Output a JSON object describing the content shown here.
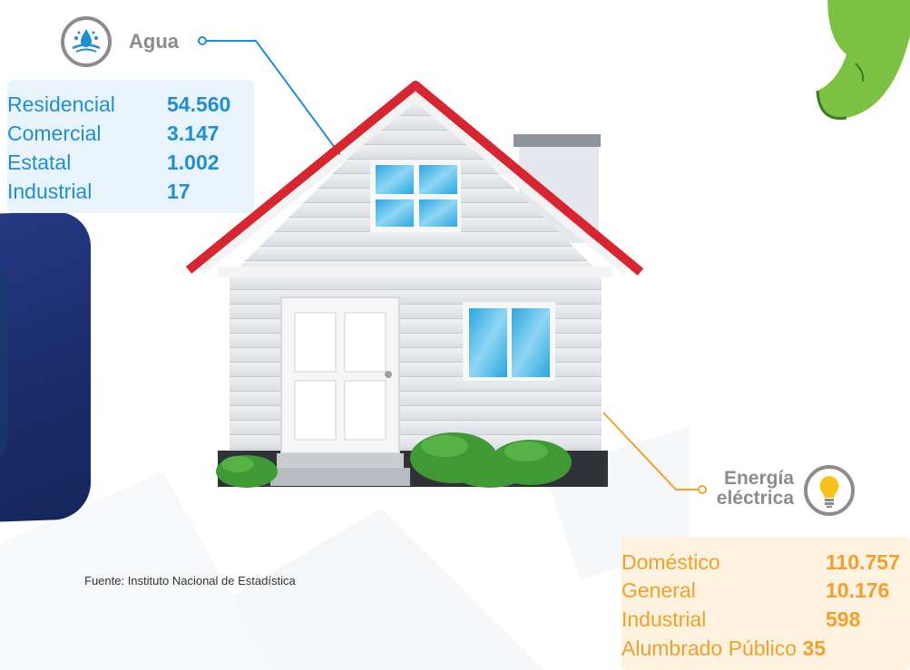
{
  "colors": {
    "water_accent": "#1f8fd1",
    "energy_accent": "#f1a12a",
    "water_panel_bg": "#e8f3fb",
    "energy_panel_bg": "#fdf1e0",
    "title_gray": "#8c8c8c",
    "roof_red": "#d7262f",
    "bg_navy": "#1b2d6b",
    "bg_green": "#7cc242"
  },
  "water": {
    "title": "Agua",
    "icon": "water-drop-icon",
    "rows": [
      {
        "label": "Residencial",
        "value": "54.560"
      },
      {
        "label": "Comercial",
        "value": "3.147"
      },
      {
        "label": "Estatal",
        "value": "1.002"
      },
      {
        "label": "Industrial",
        "value": "17"
      }
    ]
  },
  "energy": {
    "title_line1": "Energía",
    "title_line2": "eléctrica",
    "icon": "light-bulb-icon",
    "rows": [
      {
        "label": "Doméstico",
        "value": "110.757"
      },
      {
        "label": "General",
        "value": "10.176"
      },
      {
        "label": "Industrial",
        "value": "598"
      },
      {
        "label": "Alumbrado Público",
        "value": "35"
      }
    ]
  },
  "source": "Fuente: Instituto Nacional de Estadística"
}
